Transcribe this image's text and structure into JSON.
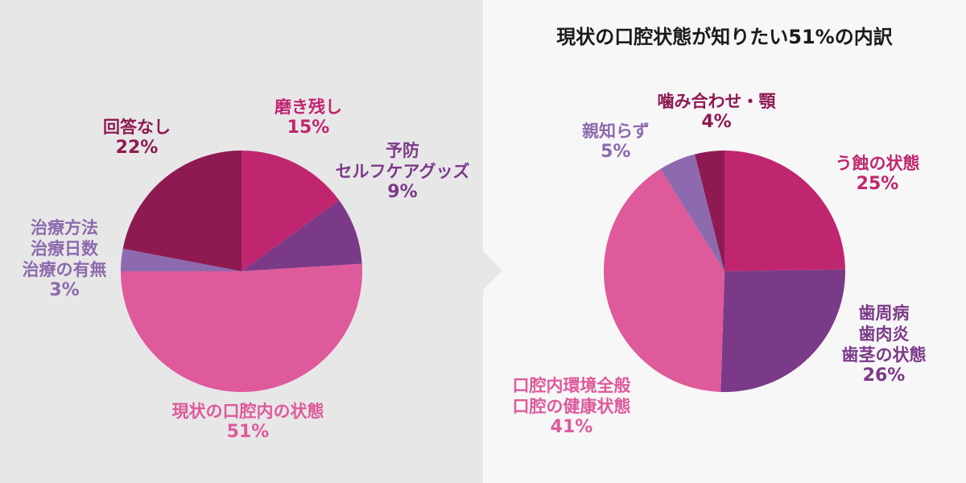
{
  "right_title": "現状の口腔状態が知りたい51%の内訳",
  "chart_data": [
    {
      "type": "pie",
      "title": "",
      "slices": [
        {
          "label": "磨き残し",
          "value": 15,
          "color": "#c0266f"
        },
        {
          "label": "予防\nセルフケアグッズ",
          "value": 9,
          "color": "#7b3a88"
        },
        {
          "label": "現状の口腔内の状態",
          "value": 51,
          "color": "#de5a9b"
        },
        {
          "label": "治療方法\n治療日数\n治療の有無",
          "value": 3,
          "color": "#8d6aad"
        },
        {
          "label": "回答なし",
          "value": 22,
          "color": "#8e1a52"
        }
      ]
    },
    {
      "type": "pie",
      "title": "現状の口腔状態が知りたい51%の内訳",
      "slices": [
        {
          "label": "う蝕の状態",
          "value": 25,
          "color": "#c0266f"
        },
        {
          "label": "歯周病\n歯肉炎\n歯茎の状態",
          "value": 26,
          "color": "#7b3a88"
        },
        {
          "label": "口腔内環境全般\n口腔の健康状態",
          "value": 41,
          "color": "#de5a9b"
        },
        {
          "label": "親知らず",
          "value": 5,
          "color": "#8d6aad"
        },
        {
          "label": "噛み合わせ・顎",
          "value": 4,
          "color": "#8e1a52"
        }
      ]
    }
  ],
  "labels_left": [
    {
      "lines": [
        "磨き残し"
      ],
      "pct": "15%",
      "color": "#c0266f"
    },
    {
      "lines": [
        "予防",
        "セルフケアグッズ"
      ],
      "pct": "9%",
      "color": "#7b3a88"
    },
    {
      "lines": [
        "現状の口腔内の状態"
      ],
      "pct": "51%",
      "color": "#de5a9b"
    },
    {
      "lines": [
        "治療方法",
        "治療日数",
        "治療の有無"
      ],
      "pct": "3%",
      "color": "#8d6aad"
    },
    {
      "lines": [
        "回答なし"
      ],
      "pct": "22%",
      "color": "#8e1a52"
    }
  ],
  "labels_right": [
    {
      "lines": [
        "う蝕の状態"
      ],
      "pct": "25%",
      "color": "#c0266f"
    },
    {
      "lines": [
        "歯周病",
        "歯肉炎",
        "歯茎の状態"
      ],
      "pct": "26%",
      "color": "#7b3a88"
    },
    {
      "lines": [
        "口腔内環境全般",
        "口腔の健康状態"
      ],
      "pct": "41%",
      "color": "#de5a9b"
    },
    {
      "lines": [
        "親知らず"
      ],
      "pct": "5%",
      "color": "#8d6aad"
    },
    {
      "lines": [
        "噛み合わせ・顎"
      ],
      "pct": "4%",
      "color": "#8e1a52"
    }
  ]
}
